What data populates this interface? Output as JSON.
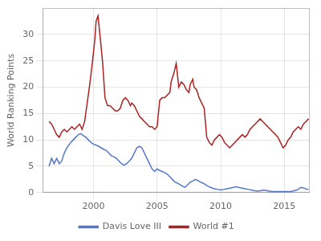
{
  "chart_data": {
    "type": "line",
    "ylabel": "World Ranking Points",
    "xlim": [
      1996,
      2017
    ],
    "xticks": [
      2000,
      2005,
      2010,
      2015
    ],
    "ylim": [
      0,
      35
    ],
    "yticks": [
      0,
      5,
      10,
      15,
      20,
      25,
      30
    ],
    "grid": true,
    "legend": "bottom",
    "series": [
      {
        "name": "Davis Love III",
        "color": "#5577cc",
        "x": [
          1996.5,
          1996.7,
          1996.9,
          1997.1,
          1997.3,
          1997.5,
          1997.7,
          1997.9,
          1998.2,
          1998.4,
          1998.6,
          1998.8,
          1999.0,
          1999.2,
          1999.4,
          1999.6,
          1999.8,
          2000.0,
          2000.2,
          2000.4,
          2000.6,
          2000.8,
          2001.0,
          2001.2,
          2001.4,
          2001.6,
          2001.8,
          2002.0,
          2002.2,
          2002.4,
          2002.6,
          2002.8,
          2003.0,
          2003.2,
          2003.4,
          2003.6,
          2003.8,
          2004.0,
          2004.2,
          2004.4,
          2004.6,
          2004.8,
          2005.0,
          2005.2,
          2005.4,
          2005.6,
          2005.8,
          2006.0,
          2006.2,
          2006.4,
          2006.6,
          2006.8,
          2007.0,
          2007.2,
          2007.4,
          2007.6,
          2007.8,
          2008.0,
          2008.2,
          2008.4,
          2008.6,
          2008.8,
          2009.0,
          2009.2,
          2009.4,
          2009.6,
          2009.8,
          2010.0,
          2010.2,
          2010.4,
          2010.6,
          2010.8,
          2011.0,
          2011.2,
          2011.4,
          2011.6,
          2011.8,
          2012.0,
          2012.2,
          2012.4,
          2012.6,
          2012.8,
          2013.0,
          2013.2,
          2013.4,
          2013.6,
          2013.8,
          2014.0,
          2014.5,
          2015.0,
          2015.5,
          2016.0,
          2016.3,
          2016.5,
          2016.7,
          2016.9
        ],
        "values": [
          5.0,
          6.5,
          5.5,
          6.5,
          5.5,
          6.0,
          7.5,
          8.5,
          9.5,
          10.0,
          10.5,
          11.0,
          11.2,
          10.8,
          10.5,
          10.0,
          9.5,
          9.2,
          9.0,
          8.8,
          8.5,
          8.2,
          8.0,
          7.5,
          7.0,
          6.8,
          6.5,
          6.0,
          5.5,
          5.2,
          5.5,
          6.0,
          6.5,
          7.5,
          8.5,
          8.8,
          8.5,
          7.5,
          6.5,
          5.5,
          4.5,
          4.0,
          4.5,
          4.2,
          4.0,
          3.8,
          3.5,
          3.0,
          2.5,
          2.0,
          1.8,
          1.5,
          1.2,
          1.0,
          1.5,
          2.0,
          2.2,
          2.5,
          2.3,
          2.0,
          1.8,
          1.5,
          1.2,
          1.0,
          0.8,
          0.7,
          0.6,
          0.5,
          0.6,
          0.7,
          0.8,
          0.9,
          1.0,
          1.1,
          1.0,
          0.9,
          0.8,
          0.7,
          0.6,
          0.5,
          0.4,
          0.3,
          0.3,
          0.4,
          0.5,
          0.4,
          0.3,
          0.2,
          0.2,
          0.2,
          0.2,
          0.5,
          1.0,
          0.9,
          0.7,
          0.6
        ]
      },
      {
        "name": "World #1",
        "color": "#aa2222",
        "x": [
          1996.5,
          1996.7,
          1996.9,
          1997.1,
          1997.3,
          1997.5,
          1997.7,
          1997.9,
          1998.1,
          1998.3,
          1998.5,
          1998.7,
          1998.9,
          1999.1,
          1999.3,
          1999.5,
          1999.7,
          1999.9,
          2000.1,
          2000.2,
          2000.35,
          2000.5,
          2000.7,
          2000.9,
          2001.1,
          2001.3,
          2001.5,
          2001.7,
          2001.9,
          2002.1,
          2002.3,
          2002.5,
          2002.7,
          2002.9,
          2003.0,
          2003.2,
          2003.4,
          2003.6,
          2003.8,
          2004.0,
          2004.2,
          2004.4,
          2004.6,
          2004.8,
          2005.0,
          2005.2,
          2005.4,
          2005.6,
          2005.8,
          2006.0,
          2006.1,
          2006.3,
          2006.5,
          2006.7,
          2006.9,
          2007.1,
          2007.3,
          2007.5,
          2007.6,
          2007.8,
          2007.9,
          2008.1,
          2008.3,
          2008.5,
          2008.7,
          2008.9,
          2009.1,
          2009.3,
          2009.5,
          2009.7,
          2009.9,
          2010.1,
          2010.3,
          2010.5,
          2010.7,
          2010.9,
          2011.1,
          2011.3,
          2011.5,
          2011.7,
          2011.9,
          2012.1,
          2012.3,
          2012.5,
          2012.7,
          2012.9,
          2013.1,
          2013.3,
          2013.5,
          2013.7,
          2013.9,
          2014.1,
          2014.3,
          2014.5,
          2014.7,
          2014.9,
          2015.1,
          2015.3,
          2015.5,
          2015.7,
          2015.9,
          2016.1,
          2016.3,
          2016.5,
          2016.7,
          2016.9
        ],
        "values": [
          13.5,
          13.0,
          12.0,
          11.0,
          10.5,
          11.5,
          12.0,
          11.5,
          12.0,
          12.5,
          12.0,
          12.5,
          13.0,
          12.0,
          13.5,
          17.0,
          20.5,
          24.5,
          29.0,
          32.5,
          33.5,
          30.0,
          25.0,
          18.0,
          16.5,
          16.5,
          16.0,
          15.5,
          15.5,
          16.0,
          17.5,
          18.0,
          17.5,
          16.5,
          17.0,
          16.5,
          15.5,
          14.5,
          14.0,
          13.5,
          13.0,
          12.5,
          12.5,
          12.0,
          12.5,
          17.5,
          18.0,
          18.0,
          18.5,
          19.0,
          21.0,
          22.5,
          24.5,
          20.0,
          21.0,
          20.5,
          19.5,
          19.0,
          20.5,
          21.5,
          20.0,
          19.5,
          18.0,
          17.0,
          16.0,
          10.5,
          9.5,
          9.0,
          10.0,
          10.5,
          11.0,
          10.5,
          9.5,
          9.0,
          8.5,
          9.0,
          9.5,
          10.0,
          10.5,
          11.0,
          10.5,
          11.0,
          12.0,
          12.5,
          13.0,
          13.5,
          14.0,
          13.5,
          13.0,
          12.5,
          12.0,
          11.5,
          11.0,
          10.5,
          9.5,
          8.5,
          9.0,
          10.0,
          10.5,
          11.5,
          12.0,
          12.5,
          12.0,
          13.0,
          13.5,
          14.0
        ]
      }
    ]
  }
}
